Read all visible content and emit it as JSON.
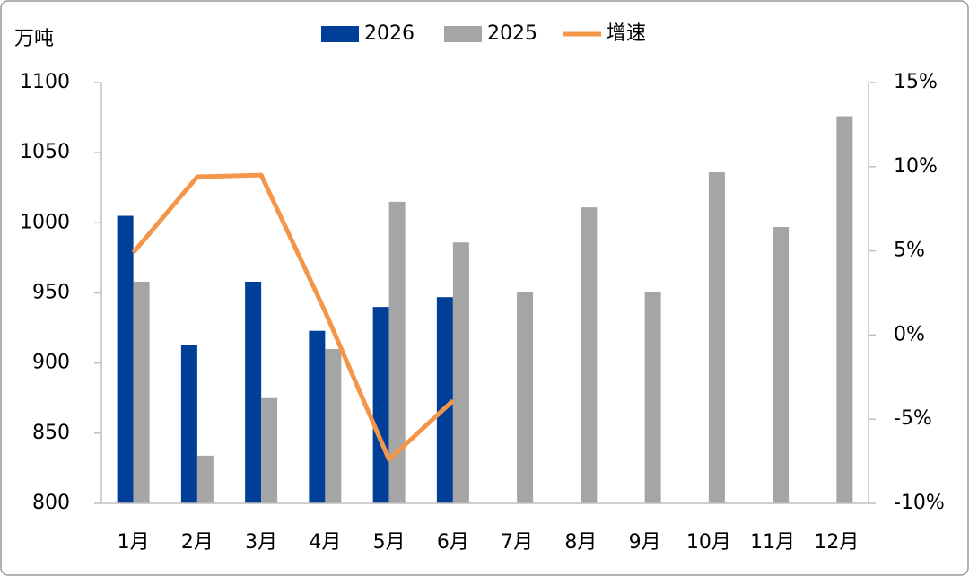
{
  "chart_data": {
    "type": "bar",
    "unit_label": "万吨",
    "categories": [
      "1月",
      "2月",
      "3月",
      "4月",
      "5月",
      "6月",
      "7月",
      "8月",
      "9月",
      "10月",
      "11月",
      "12月"
    ],
    "series": [
      {
        "name": "2026",
        "color": "#003f98",
        "values": [
          1005,
          913,
          958,
          923,
          940,
          947,
          null,
          null,
          null,
          null,
          null,
          null
        ]
      },
      {
        "name": "2025",
        "color": "#a5a5a5",
        "values": [
          958,
          834,
          875,
          910,
          1015,
          986,
          951,
          1011,
          951,
          1036,
          997,
          1076
        ]
      },
      {
        "name": "增速",
        "type": "line",
        "axis": "y2",
        "color": "#f4964a",
        "values": [
          4.9,
          9.4,
          9.5,
          1.4,
          -7.4,
          -3.9,
          null,
          null,
          null,
          null,
          null,
          null
        ]
      }
    ],
    "ylim": [
      800,
      1100
    ],
    "yticks": [
      800,
      850,
      900,
      950,
      1000,
      1050,
      1100
    ],
    "y2lim": [
      -10,
      15
    ],
    "y2ticks": [
      {
        "value": -10,
        "label": "-10%"
      },
      {
        "value": -5,
        "label": "-5%"
      },
      {
        "value": 0,
        "label": "0%"
      },
      {
        "value": 5,
        "label": "5%"
      },
      {
        "value": 10,
        "label": "10%"
      },
      {
        "value": 15,
        "label": "15%"
      }
    ],
    "grid": false,
    "legend": "top"
  }
}
